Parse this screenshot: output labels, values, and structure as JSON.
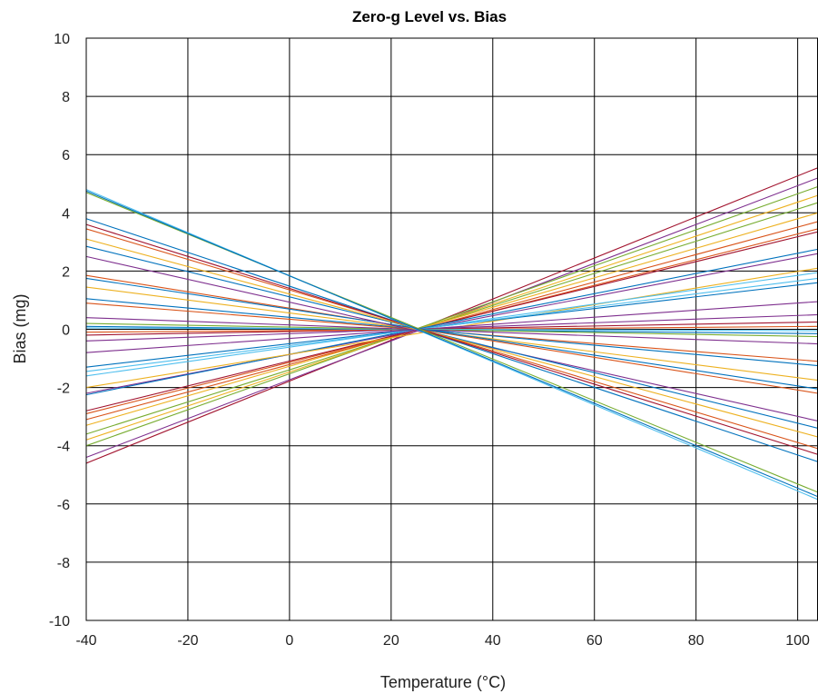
{
  "chart_data": {
    "type": "line",
    "title": "Zero-g Level vs. Bias",
    "xlabel": "Temperature (°C)",
    "ylabel": "Bias (mg)",
    "xlim": [
      -40,
      104
    ],
    "ylim": [
      -10,
      10
    ],
    "x_ticks": [
      -40,
      -20,
      0,
      20,
      40,
      60,
      80,
      100
    ],
    "y_ticks": [
      -10,
      -8,
      -6,
      -4,
      -2,
      0,
      2,
      4,
      6,
      8,
      10
    ],
    "x_tick_labels": [
      "-40",
      "-20",
      "0",
      "20",
      "40",
      "60",
      "80",
      "100"
    ],
    "y_tick_labels": [
      "-10",
      "-8",
      "-6",
      "-4",
      "-2",
      "0",
      "2",
      "4",
      "6",
      "8",
      "10"
    ],
    "grid": true,
    "legend": "none",
    "pivot": {
      "x": 25,
      "y": 0
    },
    "series": [
      {
        "color": "#a2142f",
        "x": [
          -40,
          104
        ],
        "y": [
          -4.6,
          5.55
        ]
      },
      {
        "color": "#7e2f8e",
        "x": [
          -40,
          104
        ],
        "y": [
          -4.4,
          5.2
        ]
      },
      {
        "color": "#77ac30",
        "x": [
          -40,
          104
        ],
        "y": [
          -4.0,
          4.9
        ]
      },
      {
        "color": "#edb120",
        "x": [
          -40,
          104
        ],
        "y": [
          -3.8,
          4.6
        ]
      },
      {
        "color": "#77ac30",
        "x": [
          -40,
          104
        ],
        "y": [
          -3.6,
          4.35
        ]
      },
      {
        "color": "#edb120",
        "x": [
          -40,
          104
        ],
        "y": [
          -3.3,
          4.0
        ]
      },
      {
        "color": "#d95319",
        "x": [
          -40,
          104
        ],
        "y": [
          -3.1,
          3.7
        ]
      },
      {
        "color": "#d95319",
        "x": [
          -40,
          104
        ],
        "y": [
          -2.9,
          3.45
        ]
      },
      {
        "color": "#a2142f",
        "x": [
          -40,
          104
        ],
        "y": [
          -2.8,
          3.35
        ]
      },
      {
        "color": "#7e2f8e",
        "x": [
          -40,
          104
        ],
        "y": [
          -2.2,
          2.6
        ]
      },
      {
        "color": "#0072bd",
        "x": [
          -40,
          104
        ],
        "y": [
          -2.25,
          2.75
        ]
      },
      {
        "color": "#edb120",
        "x": [
          -40,
          104
        ],
        "y": [
          -2.0,
          2.1
        ]
      },
      {
        "color": "#4dbeee",
        "x": [
          -40,
          104
        ],
        "y": [
          -1.6,
          1.95
        ]
      },
      {
        "color": "#0072bd",
        "x": [
          -40,
          104
        ],
        "y": [
          -1.3,
          1.6
        ]
      },
      {
        "color": "#4dbeee",
        "x": [
          -40,
          104
        ],
        "y": [
          -1.45,
          1.75
        ]
      },
      {
        "color": "#7e2f8e",
        "x": [
          -40,
          104
        ],
        "y": [
          -0.8,
          0.95
        ]
      },
      {
        "color": "#7e2f8e",
        "x": [
          -40,
          104
        ],
        "y": [
          -0.4,
          0.5
        ]
      },
      {
        "color": "#a2142f",
        "x": [
          -40,
          104
        ],
        "y": [
          -0.2,
          0.25
        ]
      },
      {
        "color": "#d95319",
        "x": [
          -40,
          104
        ],
        "y": [
          -0.1,
          0.1
        ]
      },
      {
        "color": "#0072bd",
        "x": [
          -40,
          104
        ],
        "y": [
          0.1,
          -0.15
        ]
      },
      {
        "color": "#4dbeee",
        "x": [
          -40,
          104
        ],
        "y": [
          0.05,
          -0.05
        ]
      },
      {
        "color": "#77ac30",
        "x": [
          -40,
          104
        ],
        "y": [
          0.2,
          -0.25
        ]
      },
      {
        "color": "#7e2f8e",
        "x": [
          -40,
          104
        ],
        "y": [
          0.4,
          -0.5
        ]
      },
      {
        "color": "#d95319",
        "x": [
          -40,
          104
        ],
        "y": [
          0.9,
          -1.1
        ]
      },
      {
        "color": "#0072bd",
        "x": [
          -40,
          104
        ],
        "y": [
          1.05,
          -1.25
        ]
      },
      {
        "color": "#edb120",
        "x": [
          -40,
          104
        ],
        "y": [
          1.45,
          -1.75
        ]
      },
      {
        "color": "#d95319",
        "x": [
          -40,
          104
        ],
        "y": [
          1.85,
          -2.2
        ]
      },
      {
        "color": "#0072bd",
        "x": [
          -40,
          104
        ],
        "y": [
          1.75,
          -2.05
        ]
      },
      {
        "color": "#7e2f8e",
        "x": [
          -40,
          104
        ],
        "y": [
          2.5,
          -3.15
        ]
      },
      {
        "color": "#0072bd",
        "x": [
          -40,
          104
        ],
        "y": [
          2.85,
          -3.4
        ]
      },
      {
        "color": "#edb120",
        "x": [
          -40,
          104
        ],
        "y": [
          3.1,
          -3.7
        ]
      },
      {
        "color": "#d95319",
        "x": [
          -40,
          104
        ],
        "y": [
          3.45,
          -4.1
        ]
      },
      {
        "color": "#0072bd",
        "x": [
          -40,
          104
        ],
        "y": [
          3.8,
          -4.55
        ]
      },
      {
        "color": "#a2142f",
        "x": [
          -40,
          104
        ],
        "y": [
          3.6,
          -4.3
        ]
      },
      {
        "color": "#77ac30",
        "x": [
          -40,
          104
        ],
        "y": [
          4.7,
          -5.6
        ]
      },
      {
        "color": "#4dbeee",
        "x": [
          -40,
          104
        ],
        "y": [
          4.8,
          -5.85
        ]
      },
      {
        "color": "#0072bd",
        "x": [
          -40,
          104
        ],
        "y": [
          4.75,
          -5.75
        ]
      }
    ]
  }
}
